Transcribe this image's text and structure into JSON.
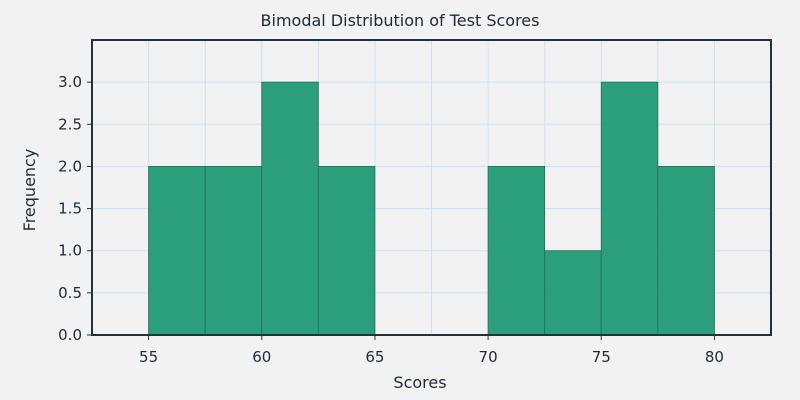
{
  "chart_data": {
    "type": "bar",
    "title": "Bimodal Distribution of Test Scores",
    "xlabel": "Scores",
    "ylabel": "Frequency",
    "xlim": [
      52.5,
      82.5
    ],
    "ylim": [
      0,
      3.5
    ],
    "xticks": [
      55,
      60,
      65,
      70,
      75,
      80
    ],
    "xtick_labels": [
      "55",
      "60",
      "65",
      "70",
      "75",
      "80"
    ],
    "yticks": [
      0,
      0.5,
      1,
      1.5,
      2,
      2.5,
      3
    ],
    "ytick_labels": [
      "0.0",
      "0.5",
      "1.0",
      "1.5",
      "2.0",
      "2.5",
      "3.0"
    ],
    "bins": [
      {
        "start": 55,
        "end": 57.5,
        "count": 2
      },
      {
        "start": 57.5,
        "end": 60,
        "count": 2
      },
      {
        "start": 60,
        "end": 62.5,
        "count": 3
      },
      {
        "start": 62.5,
        "end": 65,
        "count": 2
      },
      {
        "start": 65,
        "end": 67.5,
        "count": 0
      },
      {
        "start": 67.5,
        "end": 70,
        "count": 0
      },
      {
        "start": 70,
        "end": 72.5,
        "count": 2
      },
      {
        "start": 72.5,
        "end": 75,
        "count": 1
      },
      {
        "start": 75,
        "end": 77.5,
        "count": 3
      },
      {
        "start": 77.5,
        "end": 80,
        "count": 2
      }
    ],
    "grid": true,
    "colors": {
      "bar": "#249b77",
      "background": "#f2f2f2"
    }
  }
}
